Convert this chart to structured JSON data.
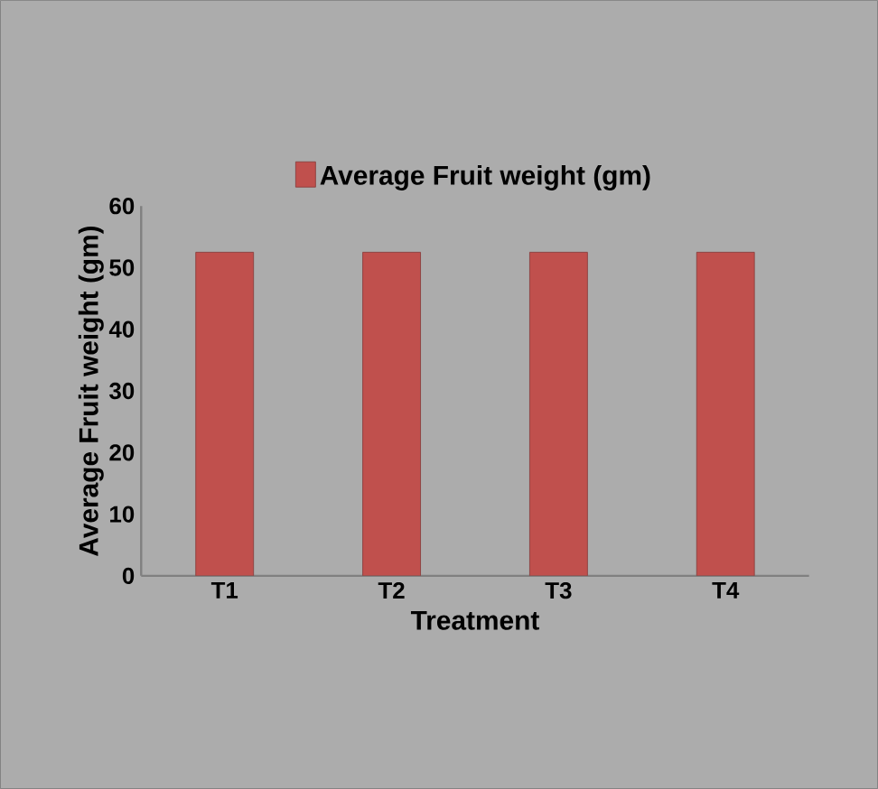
{
  "chart_data": {
    "type": "bar",
    "xlabel": "Treatment",
    "ylabel": "Average Fruit weight (gm)",
    "categories": [
      "T1",
      "T2",
      "T3",
      "T4"
    ],
    "series": [
      {
        "name": "Average Fruit weight (gm)",
        "color": "#c0504d",
        "values": [
          52.5,
          52.5,
          52.5,
          52.5
        ]
      }
    ],
    "ylim": [
      0,
      60
    ],
    "yticks": [
      0,
      10,
      20,
      30,
      40,
      50,
      60
    ],
    "grid": false,
    "legend": "top"
  }
}
